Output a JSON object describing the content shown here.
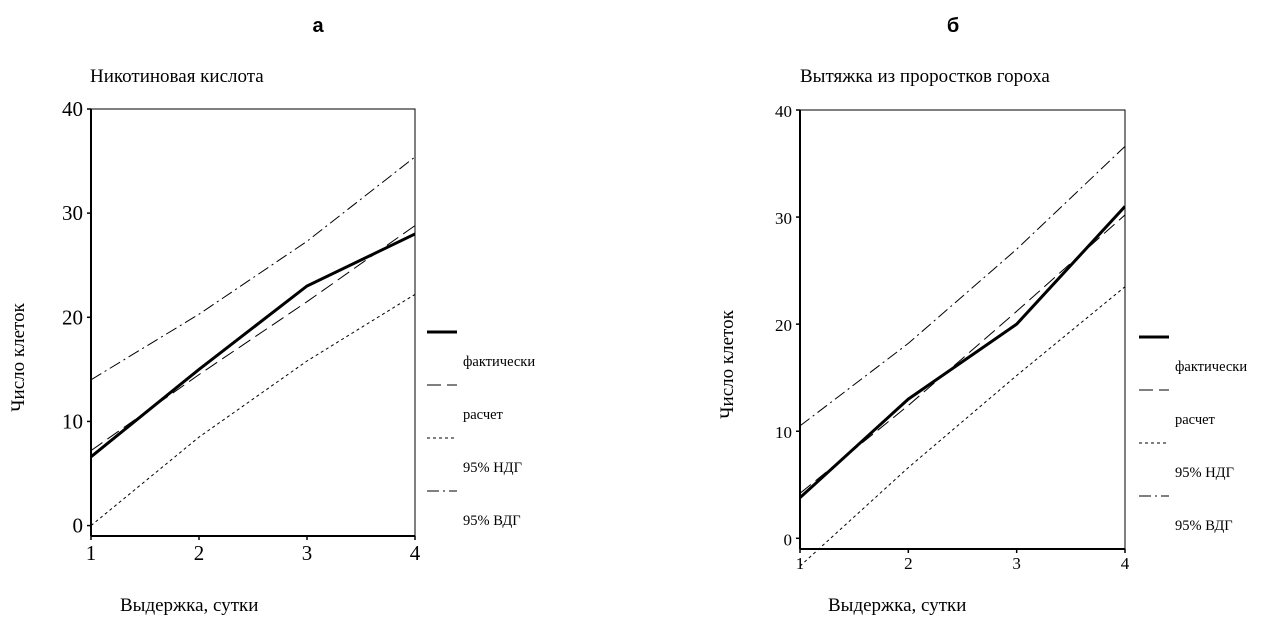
{
  "chart_data": [
    {
      "type": "line",
      "panel_label": "а",
      "title": "Никотиновая кислота",
      "xlabel": "Выдержка, сутки",
      "ylabel": "Число клеток",
      "x": [
        1,
        2,
        3,
        4
      ],
      "xticks": [
        "1",
        "2",
        "3",
        "4"
      ],
      "yticks": [
        "0",
        "10",
        "20",
        "30",
        "40"
      ],
      "xlim": [
        1,
        4
      ],
      "ylim": [
        -1,
        40
      ],
      "grid": false,
      "legend_position": "right",
      "series": [
        {
          "name": "фактически",
          "style": "solid-thick",
          "values": [
            6.6,
            15,
            23,
            28
          ]
        },
        {
          "name": "расчет",
          "style": "long-dash",
          "values": [
            7.2,
            14.5,
            21.5,
            28.8
          ]
        },
        {
          "name": "95% НДГ",
          "style": "short-dash",
          "values": [
            0,
            8.5,
            15.8,
            22.2
          ]
        },
        {
          "name": "95% ВДГ",
          "style": "dash-dot",
          "values": [
            14,
            20.3,
            27.3,
            35.4
          ]
        }
      ]
    },
    {
      "type": "line",
      "panel_label": "б",
      "title": "Вытяжка из проростков гороха",
      "xlabel": "Выдержка, сутки",
      "ylabel": "Число клеток",
      "x": [
        1,
        2,
        3,
        4
      ],
      "xticks": [
        "1",
        "2",
        "3",
        "4"
      ],
      "yticks": [
        "0",
        "10",
        "20",
        "30",
        "40"
      ],
      "xlim": [
        1,
        4
      ],
      "ylim": [
        -1,
        40
      ],
      "grid": false,
      "legend_position": "right",
      "series": [
        {
          "name": "фактически",
          "style": "solid-thick",
          "values": [
            3.8,
            13,
            20,
            31
          ]
        },
        {
          "name": "расчет",
          "style": "long-dash",
          "values": [
            4.2,
            12.4,
            21.2,
            30.2
          ]
        },
        {
          "name": "95% НДГ",
          "style": "short-dash",
          "values": [
            -2.6,
            6.6,
            15.2,
            23.5
          ]
        },
        {
          "name": "95% ВДГ",
          "style": "dash-dot",
          "values": [
            10.5,
            18.2,
            27,
            36.6
          ]
        }
      ]
    }
  ]
}
